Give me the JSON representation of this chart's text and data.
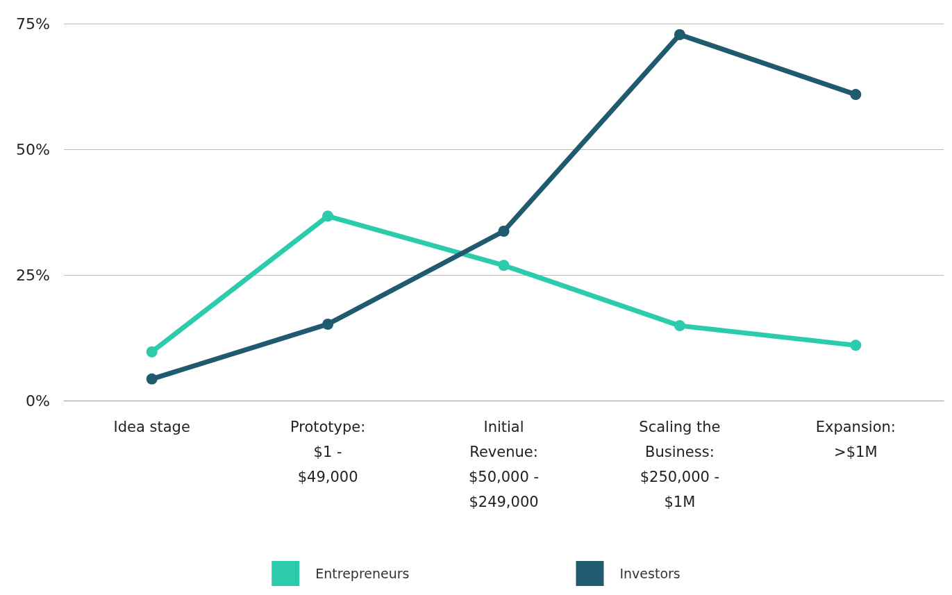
{
  "chart_data": {
    "type": "line",
    "categories": [
      "Idea stage",
      "Prototype: $1 - $49,000",
      "Initial Revenue: $50,000 - $249,000",
      "Scaling the Business: $250,000 - $1M",
      "Expansion: >$1M"
    ],
    "series": [
      {
        "name": "Entrepreneurs",
        "color": "#2ccbac",
        "values": [
          9.7,
          36.7,
          26.9,
          14.9,
          11.0
        ]
      },
      {
        "name": "Investors",
        "color": "#1f5a6e",
        "values": [
          4.3,
          15.2,
          33.7,
          72.8,
          60.9
        ]
      }
    ],
    "ylim": [
      0,
      75
    ],
    "yticks": [
      {
        "value": 0,
        "label": "0%"
      },
      {
        "value": 25,
        "label": "25%"
      },
      {
        "value": 50,
        "label": "50%"
      },
      {
        "value": 75,
        "label": "75%"
      }
    ],
    "grid": "y",
    "legend": "bottom",
    "marker": "circle",
    "line_style": "solid"
  }
}
